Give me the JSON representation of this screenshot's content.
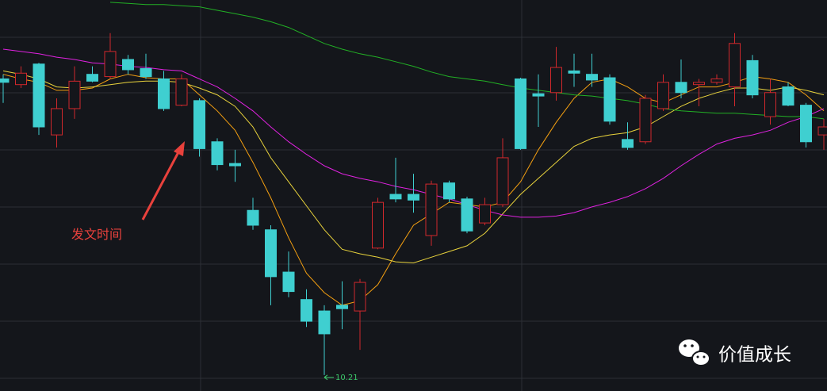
{
  "chart_data": {
    "type": "candlestick",
    "ylim": [
      10.07,
      13.49
    ],
    "up_color": "#d0282c",
    "down_color": "#3fcfd0",
    "open": [
      12.8,
      12.75,
      12.93,
      12.31,
      12.54,
      12.84,
      12.82,
      12.97,
      12.89,
      12.8,
      12.57,
      12.61,
      12.25,
      12.06,
      11.65,
      11.48,
      11.11,
      10.87,
      10.77,
      10.82,
      10.77,
      11.32,
      11.79,
      11.79,
      11.43,
      11.89,
      11.75,
      11.54,
      11.7,
      12.8,
      12.67,
      12.68,
      12.87,
      12.84,
      12.81,
      12.27,
      12.25,
      12.54,
      12.77,
      12.75,
      12.77,
      12.73,
      12.96,
      12.47,
      12.73,
      12.57,
      12.31
    ],
    "high": [
      12.84,
      12.91,
      12.94,
      12.63,
      12.91,
      12.91,
      13.2,
      13.01,
      13.02,
      12.87,
      12.84,
      12.63,
      12.28,
      12.18,
      11.76,
      11.52,
      11.29,
      10.96,
      10.82,
      11.03,
      11.05,
      11.76,
      12.11,
      11.97,
      11.91,
      11.91,
      11.77,
      11.76,
      12.28,
      12.81,
      12.84,
      13.08,
      13.02,
      13.02,
      12.84,
      12.42,
      12.66,
      12.84,
      12.97,
      12.8,
      12.84,
      13.2,
      13.01,
      12.8,
      12.77,
      12.59,
      12.45
    ],
    "low": [
      12.59,
      12.72,
      12.31,
      12.2,
      12.45,
      12.77,
      12.8,
      12.84,
      12.8,
      12.52,
      12.56,
      12.12,
      12.0,
      11.9,
      11.48,
      10.82,
      10.89,
      10.63,
      10.21,
      10.61,
      10.43,
      11.31,
      11.72,
      11.63,
      11.34,
      11.72,
      11.45,
      11.52,
      11.68,
      12.18,
      12.38,
      12.61,
      12.73,
      12.73,
      12.4,
      12.18,
      12.23,
      12.52,
      12.63,
      12.56,
      12.75,
      12.56,
      12.63,
      12.4,
      12.56,
      12.2,
      12.18
    ],
    "close": [
      12.77,
      12.85,
      12.38,
      12.54,
      12.78,
      12.78,
      13.04,
      12.88,
      12.82,
      12.54,
      12.8,
      12.19,
      12.05,
      12.04,
      11.52,
      11.07,
      10.94,
      10.68,
      10.57,
      10.79,
      11.02,
      11.72,
      11.75,
      11.74,
      11.88,
      11.75,
      11.47,
      11.7,
      12.11,
      12.19,
      12.65,
      12.9,
      12.85,
      12.79,
      12.43,
      12.2,
      12.63,
      12.77,
      12.68,
      12.77,
      12.8,
      13.11,
      12.66,
      12.68,
      12.57,
      12.25,
      12.38
    ],
    "series": [
      {
        "color": "#f5a011",
        "values": [
          12.84,
          12.8,
          12.77,
          12.7,
          12.7,
          12.72,
          12.8,
          12.84,
          12.81,
          12.8,
          12.8,
          12.66,
          12.52,
          12.35,
          12.07,
          11.76,
          11.41,
          11.1,
          10.93,
          10.82,
          10.86,
          11.0,
          11.27,
          11.52,
          11.62,
          11.72,
          11.7,
          11.68,
          11.72,
          11.9,
          12.18,
          12.42,
          12.63,
          12.77,
          12.8,
          12.73,
          12.63,
          12.59,
          12.66,
          12.73,
          12.73,
          12.77,
          12.82,
          12.8,
          12.77,
          12.66,
          12.52
        ]
      },
      {
        "color": "#e8d23c",
        "values": [
          12.87,
          12.84,
          12.8,
          12.73,
          12.72,
          12.73,
          12.75,
          12.77,
          12.78,
          12.78,
          12.77,
          12.72,
          12.66,
          12.56,
          12.38,
          12.11,
          11.9,
          11.69,
          11.48,
          11.31,
          11.27,
          11.24,
          11.2,
          11.19,
          11.24,
          11.29,
          11.34,
          11.45,
          11.62,
          11.79,
          11.93,
          12.07,
          12.21,
          12.28,
          12.31,
          12.33,
          12.38,
          12.47,
          12.56,
          12.63,
          12.68,
          12.72,
          12.72,
          12.7,
          12.73,
          12.7,
          12.66
        ]
      },
      {
        "color": "#e022e0",
        "values": [
          13.06,
          13.04,
          13.02,
          12.99,
          12.97,
          12.94,
          12.93,
          12.91,
          12.9,
          12.88,
          12.87,
          12.8,
          12.73,
          12.63,
          12.52,
          12.38,
          12.25,
          12.14,
          12.04,
          11.97,
          11.93,
          11.9,
          11.86,
          11.83,
          11.79,
          11.75,
          11.7,
          11.65,
          11.61,
          11.59,
          11.59,
          11.6,
          11.63,
          11.68,
          11.72,
          11.77,
          11.84,
          11.93,
          12.04,
          12.14,
          12.23,
          12.28,
          12.31,
          12.35,
          12.42,
          12.47,
          12.54
        ]
      },
      {
        "color": "#22b025",
        "values": [
          null,
          null,
          null,
          null,
          null,
          null,
          13.47,
          13.46,
          13.45,
          13.45,
          13.44,
          13.43,
          13.4,
          13.37,
          13.34,
          13.3,
          13.25,
          13.18,
          13.11,
          13.06,
          13.02,
          12.99,
          12.95,
          12.91,
          12.86,
          12.82,
          12.8,
          12.78,
          12.75,
          12.72,
          12.7,
          12.68,
          12.66,
          12.65,
          12.63,
          12.61,
          12.58,
          12.54,
          12.52,
          12.51,
          12.5,
          12.5,
          12.49,
          12.48,
          12.47,
          12.47,
          12.45
        ]
      }
    ],
    "annotation": "发文时间",
    "watermark": "价值成长"
  }
}
